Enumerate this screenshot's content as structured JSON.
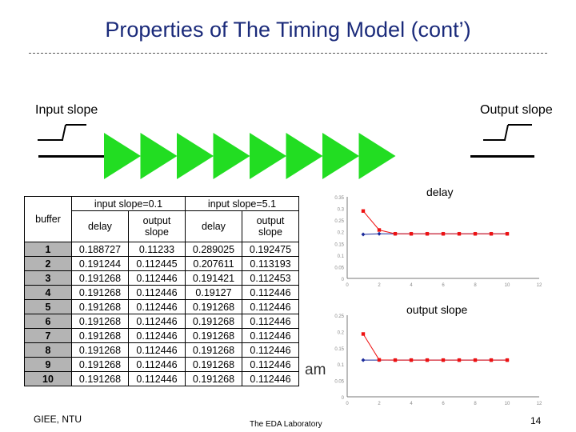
{
  "slide": {
    "title": "Properties of The Timing Model (cont’)",
    "input_slope_label": "Input slope",
    "output_slope_label": "Output slope",
    "footer_left": "GIEE, NTU",
    "footer_center": "The EDA Laboratory",
    "page_number": "14",
    "obscured_text": "am",
    "buffer_count": 8,
    "buffer_color": "#22dd22"
  },
  "table": {
    "header1": [
      "",
      "input slope=0.1",
      "input slope=5.1"
    ],
    "header2": [
      "buffer",
      "delay",
      "output slope",
      "delay",
      "output slope"
    ],
    "rows": [
      [
        "1",
        "0.188727",
        "0.11233",
        "0.289025",
        "0.192475"
      ],
      [
        "2",
        "0.191244",
        "0.112445",
        "0.207611",
        "0.113193"
      ],
      [
        "3",
        "0.191268",
        "0.112446",
        "0.191421",
        "0.112453"
      ],
      [
        "4",
        "0.191268",
        "0.112446",
        "0.19127",
        "0.112446"
      ],
      [
        "5",
        "0.191268",
        "0.112446",
        "0.191268",
        "0.112446"
      ],
      [
        "6",
        "0.191268",
        "0.112446",
        "0.191268",
        "0.112446"
      ],
      [
        "7",
        "0.191268",
        "0.112446",
        "0.191268",
        "0.112446"
      ],
      [
        "8",
        "0.191268",
        "0.112446",
        "0.191268",
        "0.112446"
      ],
      [
        "9",
        "0.191268",
        "0.112446",
        "0.191268",
        "0.112446"
      ],
      [
        "10",
        "0.191268",
        "0.112446",
        "0.191268",
        "0.112446"
      ]
    ]
  },
  "chart_data": [
    {
      "type": "line",
      "title": "delay",
      "x": [
        1,
        2,
        3,
        4,
        5,
        6,
        7,
        8,
        9,
        10
      ],
      "xlim": [
        0,
        12
      ],
      "ylim": [
        0,
        0.35
      ],
      "yticks": [
        "0",
        "0.05",
        "0.1",
        "0.15",
        "0.2",
        "0.25",
        "0.3",
        "0.35"
      ],
      "xticks": [
        "0",
        "2",
        "4",
        "6",
        "8",
        "10",
        "12"
      ],
      "series": [
        {
          "color": "#1a2a9a",
          "marker": "diamond",
          "values": [
            0.188727,
            0.191244,
            0.191268,
            0.191268,
            0.191268,
            0.191268,
            0.191268,
            0.191268,
            0.191268,
            0.191268
          ]
        },
        {
          "color": "#ee1111",
          "marker": "square",
          "values": [
            0.289025,
            0.207611,
            0.191421,
            0.19127,
            0.191268,
            0.191268,
            0.191268,
            0.191268,
            0.191268,
            0.191268
          ]
        }
      ]
    },
    {
      "type": "line",
      "title": "output slope",
      "x": [
        1,
        2,
        3,
        4,
        5,
        6,
        7,
        8,
        9,
        10
      ],
      "xlim": [
        0,
        12
      ],
      "ylim": [
        0,
        0.25
      ],
      "yticks": [
        "0",
        "0.05",
        "0.1",
        "0.15",
        "0.2",
        "0.25"
      ],
      "xticks": [
        "0",
        "2",
        "4",
        "6",
        "8",
        "10",
        "12"
      ],
      "series": [
        {
          "color": "#1a2a9a",
          "marker": "diamond",
          "values": [
            0.11233,
            0.112445,
            0.112446,
            0.112446,
            0.112446,
            0.112446,
            0.112446,
            0.112446,
            0.112446,
            0.112446
          ]
        },
        {
          "color": "#ee1111",
          "marker": "square",
          "values": [
            0.192475,
            0.113193,
            0.112453,
            0.112446,
            0.112446,
            0.112446,
            0.112446,
            0.112446,
            0.112446,
            0.112446
          ]
        }
      ]
    }
  ]
}
